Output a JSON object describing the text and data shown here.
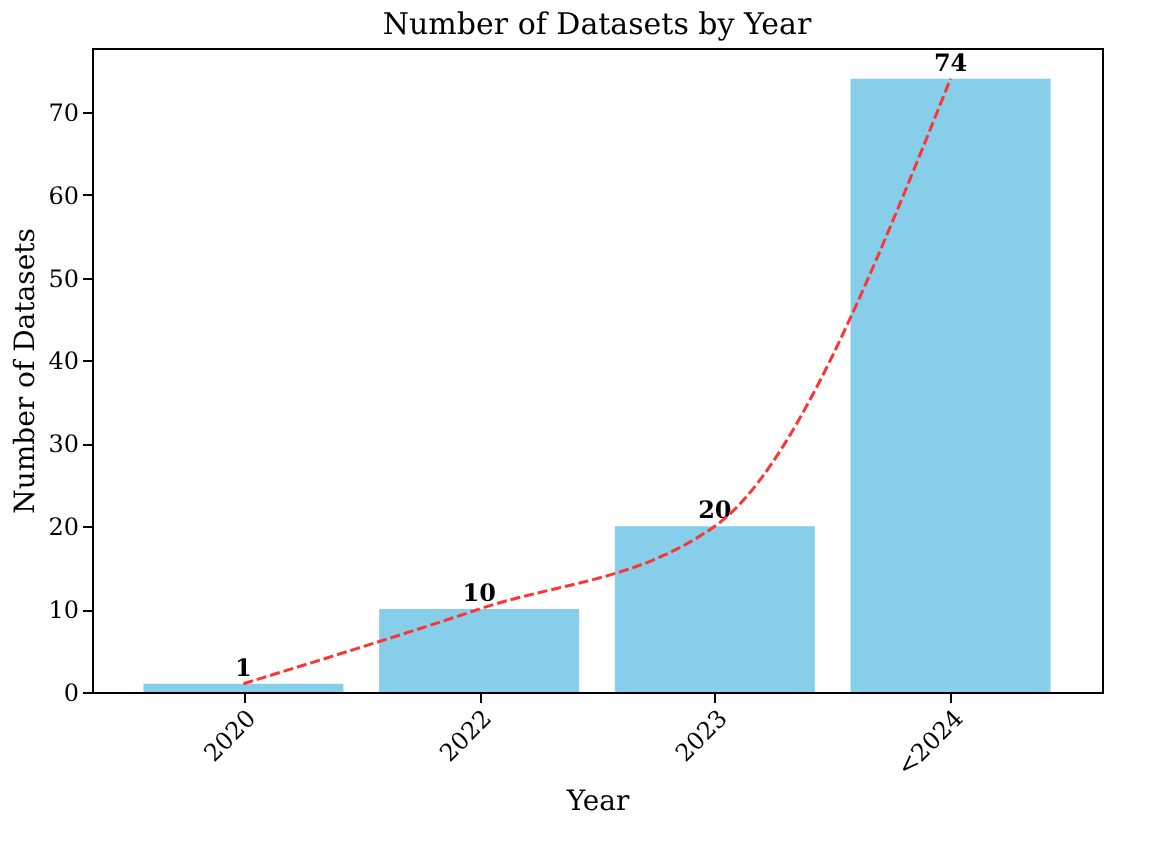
{
  "chart_data": {
    "type": "bar",
    "title": "Number of Datasets by Year",
    "xlabel": "Year",
    "ylabel": "Number of Datasets",
    "categories": [
      "2020",
      "2022",
      "2023",
      "<2024"
    ],
    "series": [
      {
        "color": "#87ceeb",
        "values": [
          1,
          10,
          20,
          74
        ],
        "value_labels": [
          "1",
          "10",
          "20",
          "74"
        ]
      },
      {
        "type": "line",
        "color": "#ff3333",
        "values": [
          1,
          10,
          20,
          74
        ],
        "line_style": "dashed",
        "marker": "none"
      }
    ],
    "ylim": [
      0,
      77.7
    ],
    "yticks": [
      0,
      10,
      20,
      30,
      40,
      50,
      60,
      70
    ],
    "grid": false
  }
}
